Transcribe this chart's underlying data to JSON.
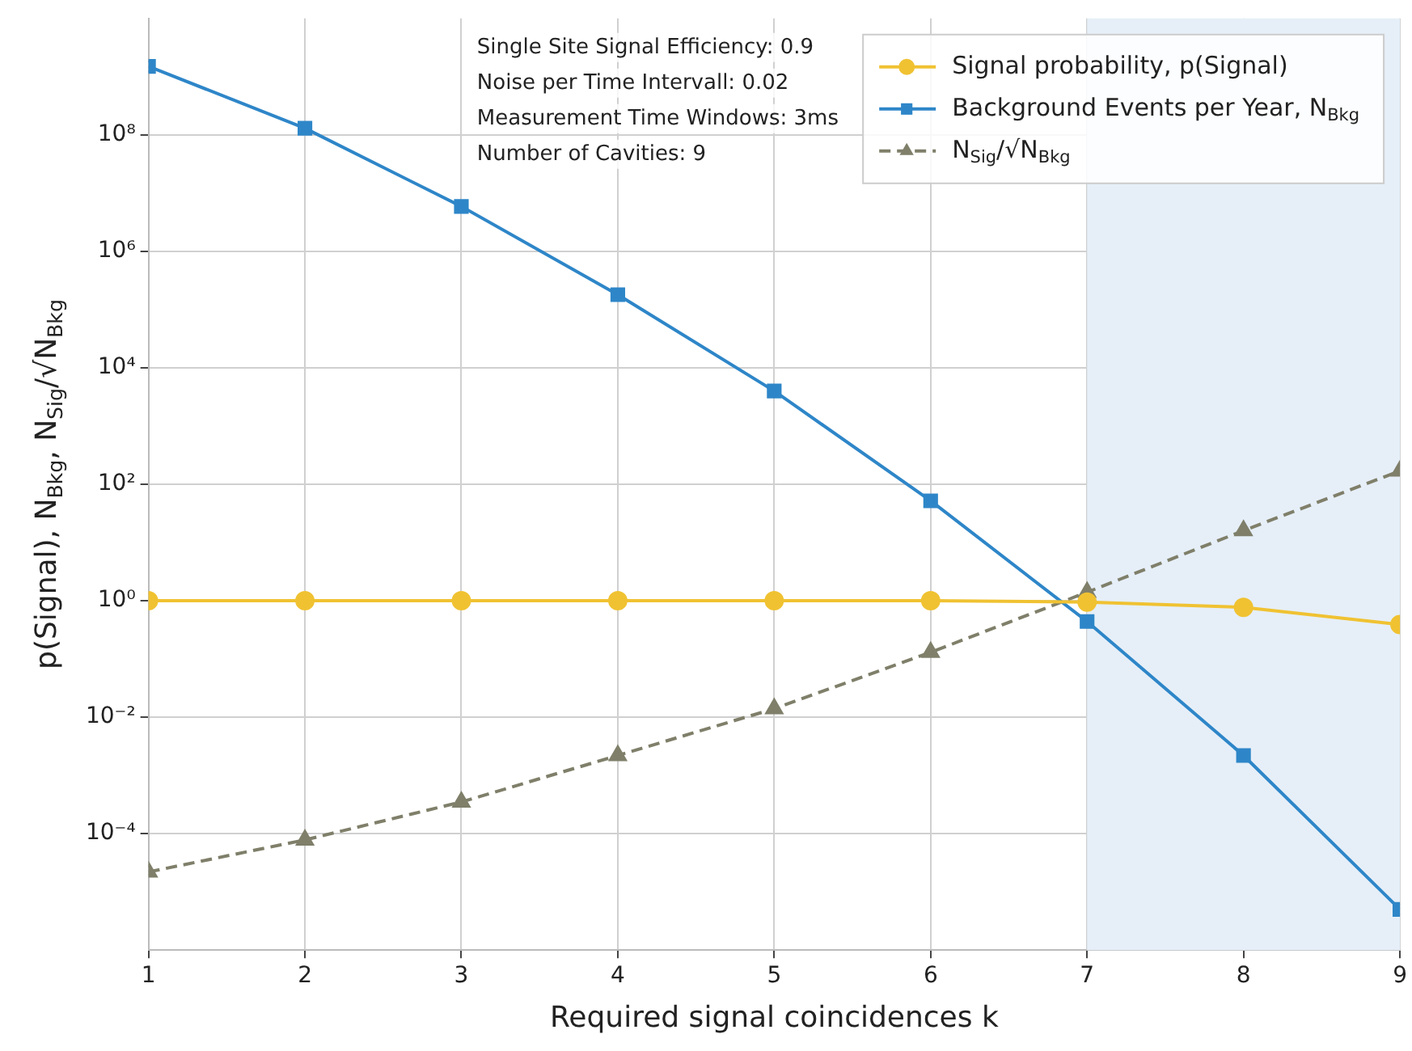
{
  "chart_data": {
    "type": "line",
    "xlabel": "Required signal coincidences k",
    "ylabel": "p(Signal), N$_{Bkg}$, N$_{Sig}$/√N$_{Bkg}$",
    "x": [
      1,
      2,
      3,
      4,
      5,
      6,
      7,
      8,
      9
    ],
    "series": [
      {
        "name": "Signal probability, p(Signal)",
        "color": "#f0c232",
        "marker": "circle",
        "line_style": "solid",
        "values": [
          1,
          1,
          1,
          1,
          1,
          1,
          0.95,
          0.77,
          0.39
        ]
      },
      {
        "name": "Background Events per Year, N$_{Bkg}$",
        "color": "#2e86c8",
        "marker": "square",
        "line_style": "solid",
        "values": [
          1500000000.0,
          130000000.0,
          5900000.0,
          180000.0,
          4000,
          52,
          0.44,
          0.0022,
          5e-06
        ]
      },
      {
        "name": "N$_{Sig}$/√N$_{Bkg}$",
        "color": "#7f7f6a",
        "marker": "triangle",
        "line_style": "dashed",
        "values": [
          2.2e-05,
          7.8e-05,
          0.00035,
          0.0022,
          0.014,
          0.13,
          1.4,
          16,
          170
        ]
      }
    ],
    "log": "y",
    "xlim": [
      1,
      9
    ],
    "xticks": [
      1,
      2,
      3,
      4,
      5,
      6,
      7,
      8,
      9
    ],
    "ylim": [
      1e-06,
      10000000000.0
    ],
    "yticks": [
      {
        "value": 0.0001,
        "label": "10⁻⁴"
      },
      {
        "value": 0.01,
        "label": "10⁻²"
      },
      {
        "value": 1,
        "label": "10⁰"
      },
      {
        "value": 100,
        "label": "10²"
      },
      {
        "value": 10000,
        "label": "10⁴"
      },
      {
        "value": 1000000,
        "label": "10⁶"
      },
      {
        "value": 100000000,
        "label": "10⁸"
      }
    ],
    "grid": true,
    "legend": "top right",
    "bands": [
      {
        "axis": "x",
        "from": 7,
        "to": 9,
        "color": "#e6eff8"
      }
    ],
    "annotations": [
      "Single Site Signal Efficiency: 0.9",
      "Noise per Time Intervall: 0.02",
      "Measurement Time Windows: 3ms",
      "Number of Cavities: 9"
    ]
  }
}
